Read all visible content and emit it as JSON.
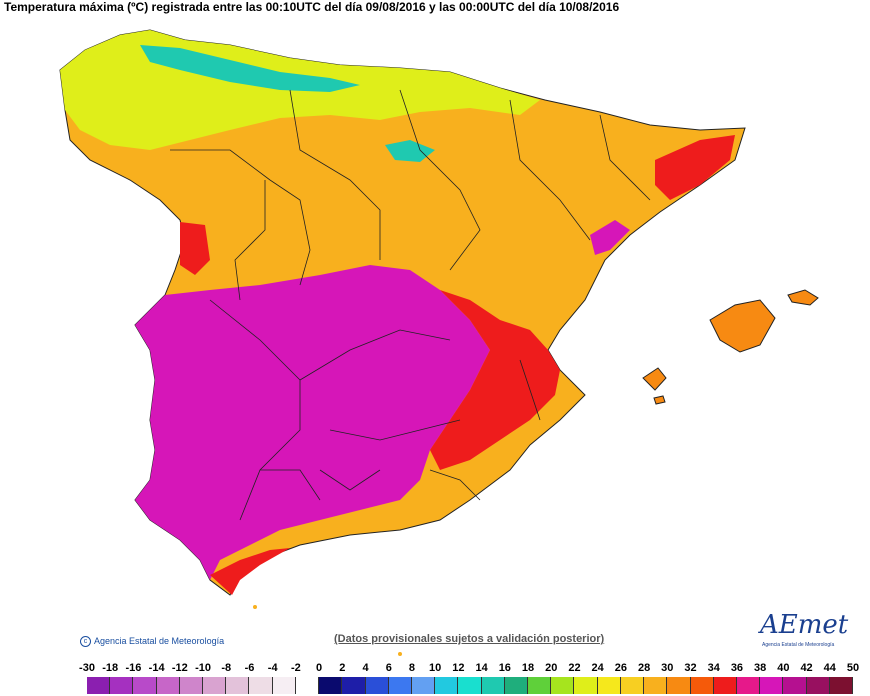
{
  "title": "Temperatura máxima (ºC) registrada entre las 00:10UTC del día 09/08/2016 y las 00:00UTC del día 10/08/2016",
  "credit": "Agencia Estatal de Meteorología",
  "disclaimer": "(Datos provisionales sujetos a validación posterior)",
  "logo": {
    "text": "AEmet",
    "sub": "Agencia Estatal de Meteorología"
  },
  "legend": {
    "ticks": [
      "-30",
      "-18",
      "-16",
      "-14",
      "-12",
      "-10",
      "-8",
      "-6",
      "-4",
      "-2",
      "0",
      "2",
      "4",
      "6",
      "8",
      "10",
      "12",
      "14",
      "16",
      "18",
      "20",
      "22",
      "24",
      "26",
      "28",
      "30",
      "32",
      "34",
      "36",
      "38",
      "40",
      "42",
      "44",
      "50"
    ],
    "colors": [
      "#8b1fb0",
      "#a530c0",
      "#b84ac9",
      "#c766c8",
      "#cf85cb",
      "#d9a3d0",
      "#e3c2da",
      "#eedde6",
      "#f6eef3",
      "#ffffff",
      "#0a0a6e",
      "#1e1ea8",
      "#2a4fd8",
      "#3c78f0",
      "#63a0f2",
      "#22c9e0",
      "#19dfcf",
      "#1fc9b0",
      "#1fae7c",
      "#5fd03a",
      "#a6e41e",
      "#dfee1a",
      "#f5e81c",
      "#f7cf22",
      "#f8b01e",
      "#f78a12",
      "#f55a0a",
      "#ee1c1c",
      "#e6198a",
      "#d616b8",
      "#b51090",
      "#981060",
      "#7c1030"
    ]
  },
  "regions": {
    "peninsula_color": "#f8b01e",
    "north_coast_color": "#dfee1a",
    "mountain_color": "#1fc9b0",
    "hot_interior_color": "#d616b8",
    "hot_east_color": "#ee1c1c",
    "islands_color": "#f78a12"
  }
}
